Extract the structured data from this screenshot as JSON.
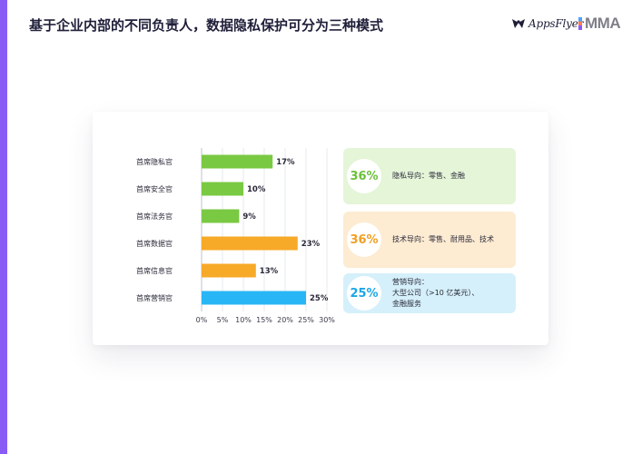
{
  "title": "基于企业内部的不同负责人，数据隐私保护可分为三种模式",
  "logos": {
    "appsflyer": "AppsFlyer",
    "mma": "MMA"
  },
  "colors": {
    "accent_bar": "#8a5cf6",
    "green": "#7ac943",
    "orange": "#f7a928",
    "blue": "#29b6f6",
    "green_bg": "#e5f5d8",
    "orange_bg": "#fdebd2",
    "blue_bg": "#d5f0fa",
    "green_text": "#6cbf3a",
    "orange_text": "#f0a024",
    "blue_text": "#1aa6e6"
  },
  "chart_data": {
    "type": "bar",
    "orientation": "horizontal",
    "categories": [
      "首席隐私官",
      "首席安全官",
      "首席法务官",
      "首席数据官",
      "首席信息官",
      "首席营销官"
    ],
    "values": [
      17,
      10,
      9,
      23,
      13,
      25
    ],
    "value_labels": [
      "17%",
      "10%",
      "9%",
      "23%",
      "13%",
      "25%"
    ],
    "bar_colors": [
      "#7ac943",
      "#7ac943",
      "#7ac943",
      "#f7a928",
      "#f7a928",
      "#29b6f6"
    ],
    "xticks": [
      0,
      5,
      10,
      15,
      20,
      25,
      30
    ],
    "xtick_labels": [
      "0%",
      "5%",
      "10%",
      "15%",
      "20%",
      "25%",
      "30%"
    ],
    "xlim": [
      0,
      30
    ],
    "grid": true
  },
  "summary_boxes": [
    {
      "percent": "36%",
      "text": "隐私导向：零售、金融"
    },
    {
      "percent": "36%",
      "text": "技术导向：零售、耐用品、技术"
    },
    {
      "percent": "25%",
      "text": "营销导向：\n大型公司（>10 亿美元）、\n金融服务"
    }
  ]
}
